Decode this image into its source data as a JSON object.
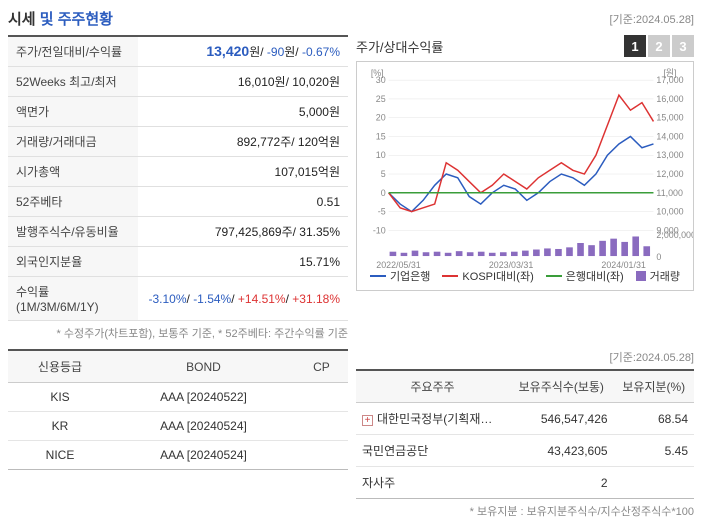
{
  "header": {
    "title1": "시세",
    "title2": " 및 주주현황",
    "date": "[기준:2024.05.28]"
  },
  "info": {
    "rows": [
      {
        "label": "주가/전일대비/수익률",
        "value_html": "<span class='price-main'>13,420</span>원/ <span class='neg'>-90</span>원/ <span class='neg'>-0.67%</span>"
      },
      {
        "label": "52Weeks 최고/최저",
        "value_html": "16,010원/ 10,020원"
      },
      {
        "label": "액면가",
        "value_html": "5,000원"
      },
      {
        "label": "거래량/거래대금",
        "value_html": "892,772주/ 120억원"
      },
      {
        "label": "시가총액",
        "value_html": "107,015억원"
      },
      {
        "label": "52주베타",
        "value_html": "0.51"
      },
      {
        "label": "발행주식수/유동비율",
        "value_html": "797,425,869주/ 31.35%"
      },
      {
        "label": "외국인지분율",
        "value_html": "15.71%"
      },
      {
        "label": "수익률 (1M/3M/6M/1Y)",
        "value_html": "<span class='neg'>-3.10%</span>/ <span class='neg'>-1.54%</span>/ <span class='pos'>+14.51%</span>/ <span class='pos'>+31.18%</span>"
      }
    ],
    "footnote": "* 수정주가(차트포함), 보통주 기준, * 52주베타: 주간수익률 기준"
  },
  "chart": {
    "title": "주가/상대수익률",
    "tabs": [
      "1",
      "2",
      "3"
    ],
    "xlabels": [
      "2022/05/31",
      "2023/03/31",
      "2024/01/31"
    ],
    "left_axis": {
      "label": "[%]",
      "min": -10,
      "max": 30,
      "step": 5
    },
    "right_axis": {
      "label": "[원]",
      "min": 9000,
      "max": 17000,
      "step": 1000
    },
    "volume_max": 2000000,
    "series": [
      {
        "name": "기업은행",
        "color": "#2b5cbf",
        "type": "line",
        "data": [
          0,
          -3,
          -5,
          -2,
          2,
          5,
          4,
          -1,
          -3,
          0,
          2,
          1,
          -2,
          0,
          3,
          5,
          4,
          2,
          5,
          10,
          13,
          15,
          12,
          13
        ]
      },
      {
        "name": "KOSPI대비(좌)",
        "color": "#d33",
        "type": "line",
        "data": [
          0,
          -4,
          -5,
          -4,
          -3,
          8,
          6,
          3,
          0,
          2,
          5,
          3,
          1,
          4,
          6,
          8,
          6,
          5,
          10,
          18,
          26,
          22,
          24,
          19
        ]
      },
      {
        "name": "은행대비(좌)",
        "color": "#3a9d3a",
        "type": "line",
        "data": [
          0,
          0,
          0,
          0,
          0,
          0,
          0,
          0,
          0,
          0,
          0,
          0,
          0,
          0,
          0,
          0,
          0,
          0,
          0,
          0,
          0,
          0,
          0,
          0
        ]
      },
      {
        "name": "거래량",
        "color": "#8a6bbf",
        "type": "bar",
        "data": [
          400000,
          300000,
          500000,
          350000,
          400000,
          300000,
          450000,
          350000,
          400000,
          300000,
          350000,
          400000,
          500000,
          600000,
          700000,
          650000,
          800000,
          1200000,
          1000000,
          1400000,
          1600000,
          1300000,
          1800000,
          900000
        ]
      }
    ]
  },
  "credit": {
    "columns": [
      "신용등급",
      "BOND",
      "CP"
    ],
    "rows": [
      [
        "KIS",
        "AAA  [20240522]",
        ""
      ],
      [
        "KR",
        "AAA  [20240524]",
        ""
      ],
      [
        "NICE",
        "AAA  [20240524]",
        ""
      ]
    ]
  },
  "shareholders": {
    "date": "[기준:2024.05.28]",
    "columns": [
      "주요주주",
      "보유주식수(보통)",
      "보유지분(%)"
    ],
    "rows": [
      {
        "name": "대한민국정부(기획재…",
        "shares": "546,547,426",
        "pct": "68.54",
        "expandable": true
      },
      {
        "name": "국민연금공단",
        "shares": "43,423,605",
        "pct": "5.45",
        "expandable": false
      },
      {
        "name": "자사주",
        "shares": "2",
        "pct": "",
        "expandable": false
      }
    ],
    "footnote": "* 보유지분 : 보유지분주식수/지수산정주식수*100"
  },
  "colors": {
    "grid": "#e5e5e5",
    "axis": "#888"
  }
}
